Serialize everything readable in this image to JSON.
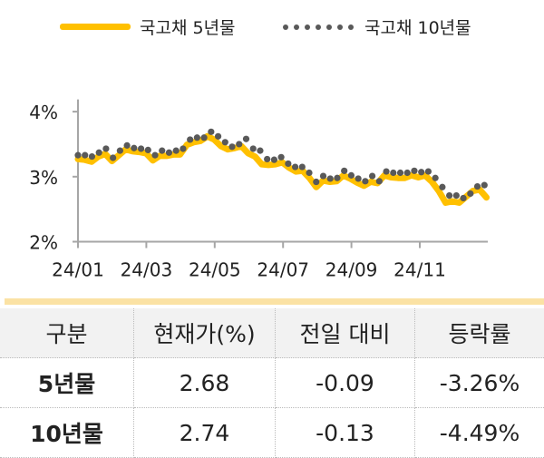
{
  "chart_data": {
    "type": "line",
    "xlabel": "",
    "ylabel": "",
    "x_unit": "months since 2024-01",
    "xlim": [
      0,
      12
    ],
    "ylim": [
      2,
      4.3
    ],
    "y_ticks": [
      {
        "v": 2,
        "label": "2%"
      },
      {
        "v": 3,
        "label": "3%"
      },
      {
        "v": 4,
        "label": "4%"
      }
    ],
    "x_ticks": [
      {
        "v": 0,
        "label": "24/01"
      },
      {
        "v": 2,
        "label": "24/03"
      },
      {
        "v": 4,
        "label": "24/05"
      },
      {
        "v": 6,
        "label": "24/07"
      },
      {
        "v": 8,
        "label": "24/09"
      },
      {
        "v": 10,
        "label": "24/11"
      }
    ],
    "legend": "top",
    "x_step": 0.205,
    "series": [
      {
        "name": "국고채 5년물",
        "style": "line",
        "color": "#FFC000",
        "values": [
          3.27,
          3.26,
          3.23,
          3.31,
          3.35,
          3.24,
          3.33,
          3.42,
          3.39,
          3.38,
          3.36,
          3.25,
          3.32,
          3.32,
          3.34,
          3.34,
          3.49,
          3.53,
          3.55,
          3.62,
          3.57,
          3.47,
          3.42,
          3.44,
          3.47,
          3.36,
          3.31,
          3.19,
          3.18,
          3.19,
          3.22,
          3.14,
          3.08,
          3.09,
          2.98,
          2.84,
          2.94,
          2.92,
          2.93,
          3.02,
          2.97,
          2.91,
          2.86,
          2.92,
          2.9,
          3.02,
          2.99,
          2.98,
          2.98,
          3.02,
          2.99,
          3.02,
          2.92,
          2.78,
          2.6,
          2.62,
          2.6,
          2.69,
          2.78,
          2.8,
          2.68
        ]
      },
      {
        "name": "국고채 10년물",
        "style": "dots",
        "color": "#595959",
        "values": [
          3.33,
          3.33,
          3.31,
          3.37,
          3.43,
          3.29,
          3.4,
          3.48,
          3.44,
          3.43,
          3.41,
          3.33,
          3.4,
          3.37,
          3.4,
          3.43,
          3.57,
          3.6,
          3.6,
          3.69,
          3.62,
          3.53,
          3.46,
          3.5,
          3.58,
          3.43,
          3.4,
          3.27,
          3.26,
          3.3,
          3.2,
          3.15,
          3.15,
          3.06,
          2.92,
          3.01,
          2.97,
          2.98,
          3.09,
          3.02,
          2.97,
          2.93,
          3.01,
          2.93,
          3.08,
          3.06,
          3.06,
          3.06,
          3.09,
          3.07,
          3.08,
          2.98,
          2.84,
          2.71,
          2.71,
          2.67,
          2.74,
          2.85,
          2.87
        ]
      }
    ]
  },
  "table": {
    "headers": [
      "구분",
      "현재가(%)",
      "전일 대비",
      "등락률"
    ],
    "rows": [
      [
        "5년물",
        "2.68",
        "-0.09",
        "-3.26%"
      ],
      [
        "10년물",
        "2.74",
        "-0.13",
        "-4.49%"
      ]
    ]
  }
}
